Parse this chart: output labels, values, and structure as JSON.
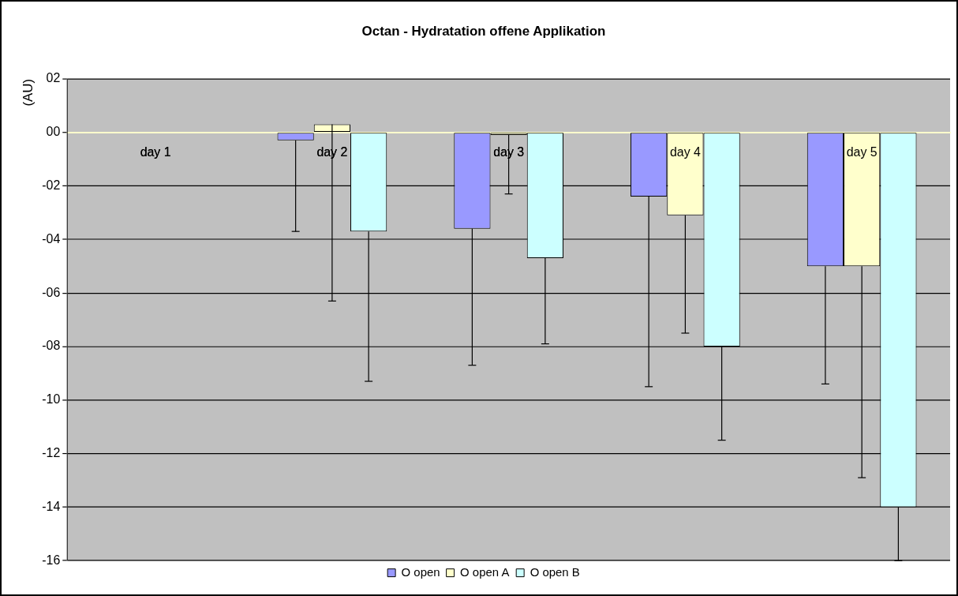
{
  "chart_data": {
    "type": "bar",
    "title": "Octan - Hydratation offene Applikation",
    "ylabel": "(AU)",
    "categories": [
      "day 1",
      "day 2",
      "day 3",
      "day 4",
      "day 5"
    ],
    "series": [
      {
        "name": "O open",
        "color": "#9999ff",
        "values": [
          0,
          -0.3,
          -3.6,
          -2.4,
          -5.0
        ],
        "errors": [
          null,
          [
            -3.7,
            -0.3
          ],
          [
            -8.7,
            -3.6
          ],
          [
            -9.5,
            -2.4
          ],
          [
            -9.4,
            -5.0
          ]
        ]
      },
      {
        "name": "O open A",
        "color": "#ffffcc",
        "values": [
          0,
          0.3,
          -0.1,
          -3.1,
          -5.0
        ],
        "errors": [
          null,
          [
            -6.3,
            0.3
          ],
          [
            -2.3,
            -0.1
          ],
          [
            -7.5,
            -3.1
          ],
          [
            -12.9,
            -5.0
          ]
        ]
      },
      {
        "name": "O open B",
        "color": "#ccffff",
        "values": [
          0,
          -3.7,
          -4.7,
          -8.0,
          -14.0
        ],
        "errors": [
          null,
          [
            -9.3,
            -3.7
          ],
          [
            -7.9,
            -4.7
          ],
          [
            -11.5,
            -8.0
          ],
          [
            -16,
            -14.0
          ]
        ]
      }
    ],
    "ylim": [
      -16,
      2
    ],
    "yticks": [
      {
        "value": 2,
        "label": "02"
      },
      {
        "value": 0,
        "label": "00"
      },
      {
        "value": -2,
        "label": "-02"
      },
      {
        "value": -4,
        "label": "-04"
      },
      {
        "value": -6,
        "label": "-06"
      },
      {
        "value": -8,
        "label": "-08"
      },
      {
        "value": -10,
        "label": "-10"
      },
      {
        "value": -12,
        "label": "-12"
      },
      {
        "value": -14,
        "label": "-14"
      },
      {
        "value": -16,
        "label": "-16"
      }
    ],
    "grid": "y",
    "legend": "bottom"
  }
}
